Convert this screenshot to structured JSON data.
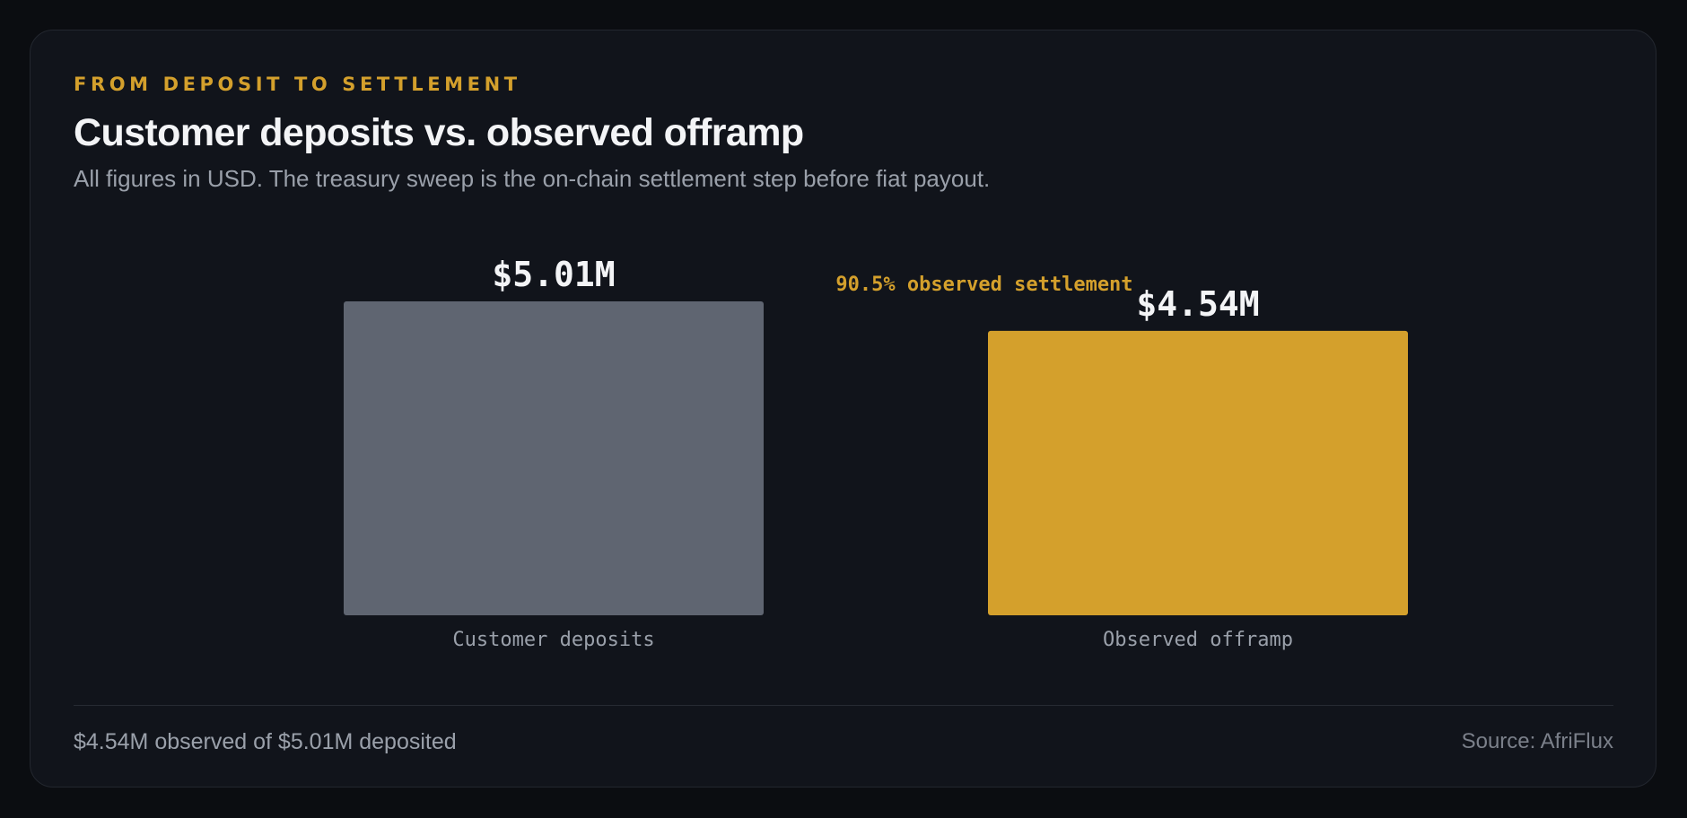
{
  "header": {
    "eyebrow": "FROM DEPOSIT TO SETTLEMENT",
    "title": "Customer deposits vs. observed offramp",
    "subtitle": "All figures in USD. The treasury sweep is the on-chain settlement step before fiat payout."
  },
  "chart_data": {
    "type": "bar",
    "title": "Customer deposits vs. observed offramp",
    "categories": [
      "Customer deposits",
      "Observed offramp"
    ],
    "values": [
      5010000,
      4540000
    ],
    "value_labels": [
      "$5.01M",
      "$4.54M"
    ],
    "ratio_label": "90.5% observed settlement",
    "unit": "USD",
    "ylim": [
      0,
      5010000
    ],
    "grid": false,
    "legend": "none",
    "colors": [
      "#5f6571",
      "#d4a02c"
    ]
  },
  "footer": {
    "summary": "$4.54M observed of $5.01M deposited",
    "source": "Source: AfriFlux"
  },
  "colors": {
    "background": "#0b0d11",
    "card": "#11141b",
    "accent": "#d4a02c",
    "neutral_bar": "#5f6571",
    "text_primary": "#f3f4f6",
    "text_secondary": "#9aa0aa"
  }
}
